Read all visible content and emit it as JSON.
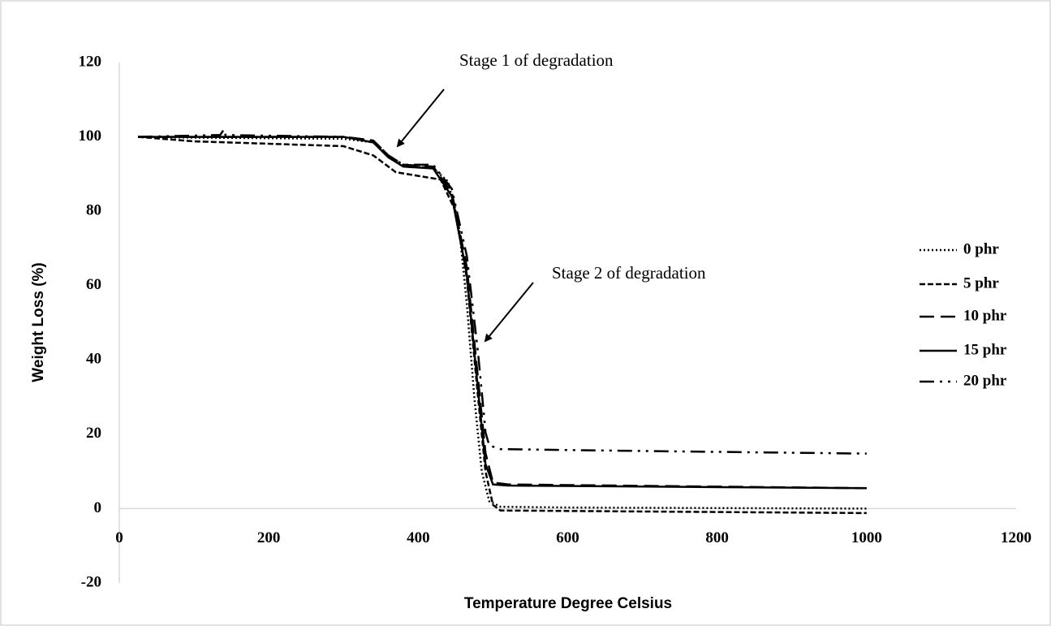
{
  "chart_data": {
    "type": "line",
    "xlabel": "Temperature Degree Celsius",
    "ylabel": "Weight Loss (%)",
    "xlim": [
      0,
      1200
    ],
    "xticks": [
      0,
      200,
      400,
      600,
      800,
      1000,
      1200
    ],
    "ylim": [
      -20,
      120
    ],
    "yticks": [
      -20,
      0,
      20,
      40,
      60,
      80,
      100,
      120
    ],
    "grid": false,
    "legend": "right",
    "annotations": [
      "Stage 1 of degradation",
      "Stage 2 of degradation"
    ],
    "series": [
      {
        "name": "0 phr",
        "color": "#000000",
        "dash": "dotted",
        "x": [
          25,
          100,
          300,
          340,
          360,
          380,
          420,
          440,
          455,
          465,
          475,
          485,
          495,
          510,
          600,
          1000
        ],
        "values": [
          100,
          99.8,
          99.5,
          98.5,
          95,
          92.5,
          91.5,
          88,
          75,
          55,
          30,
          10,
          2,
          0.5,
          0.3,
          0
        ]
      },
      {
        "name": "5 phr",
        "color": "#000000",
        "dash": "dashed",
        "x": [
          25,
          100,
          300,
          340,
          370,
          400,
          430,
          450,
          465,
          480,
          490,
          500,
          510,
          1000
        ],
        "values": [
          100,
          98.8,
          97.5,
          95,
          90.5,
          89.5,
          88.5,
          80,
          62,
          30,
          10,
          1,
          -0.5,
          -1.2
        ]
      },
      {
        "name": "10 phr",
        "color": "#000000",
        "dash": "long-dash",
        "x": [
          25,
          300,
          340,
          360,
          380,
          420,
          445,
          465,
          480,
          490,
          500,
          520,
          1000
        ],
        "values": [
          100,
          100,
          99,
          95,
          92.5,
          92,
          85,
          65,
          35,
          15,
          7,
          6.5,
          5.5
        ]
      },
      {
        "name": "15 phr",
        "color": "#000000",
        "dash": "solid",
        "x": [
          25,
          300,
          340,
          360,
          380,
          420,
          445,
          465,
          480,
          490,
          500,
          520,
          1000
        ],
        "values": [
          100,
          100,
          98.5,
          94.5,
          92,
          91.5,
          84,
          63,
          32,
          12,
          6.5,
          6.2,
          5.5
        ]
      },
      {
        "name": "20 phr",
        "color": "#000000",
        "dash": "dash-dot-dot",
        "x": [
          25,
          135,
          140,
          142,
          300,
          340,
          360,
          380,
          420,
          445,
          465,
          480,
          488,
          490,
          495,
          510,
          700,
          1000
        ],
        "values": [
          100,
          100.5,
          102,
          100.5,
          100,
          99,
          95,
          92.5,
          92.5,
          86,
          68,
          42,
          25,
          20.5,
          17,
          16,
          15.5,
          14.8
        ]
      }
    ]
  }
}
